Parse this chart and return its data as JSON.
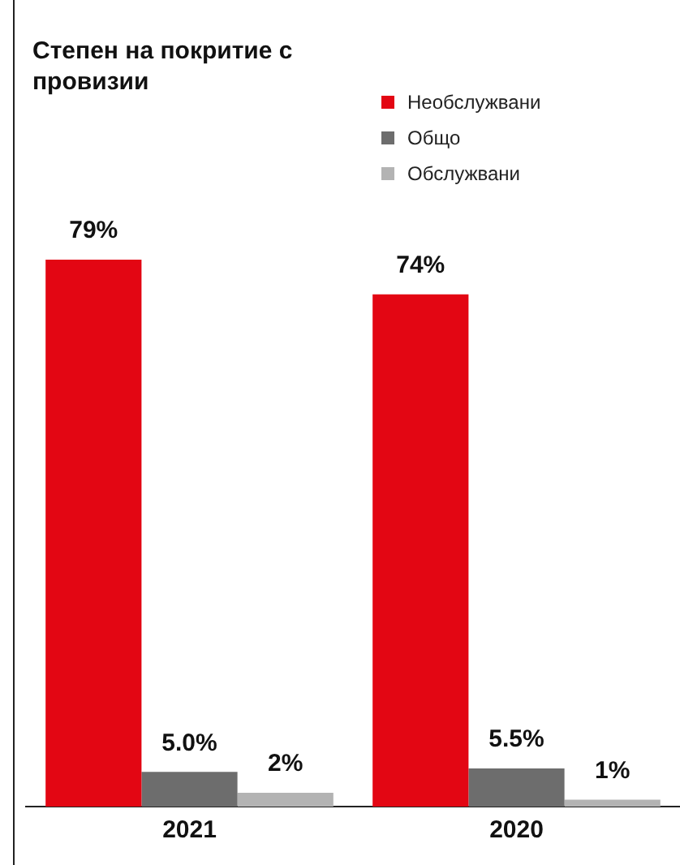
{
  "chart_data": {
    "type": "bar",
    "title": "Степен на покритие с провизии",
    "categories": [
      "2021",
      "2020"
    ],
    "series": [
      {
        "name": "Необслужвани",
        "color": "#e30613",
        "values": [
          79,
          74
        ],
        "value_labels": [
          "79%",
          "74%"
        ]
      },
      {
        "name": "Общо",
        "color": "#6d6d6d",
        "values": [
          5.0,
          5.5
        ],
        "value_labels": [
          "5.0%",
          "5.5%"
        ]
      },
      {
        "name": "Обслужвани",
        "color": "#b3b3b3",
        "values": [
          2,
          1
        ],
        "value_labels": [
          "2%",
          "1%"
        ]
      }
    ],
    "legend": "top right",
    "grid": false
  }
}
